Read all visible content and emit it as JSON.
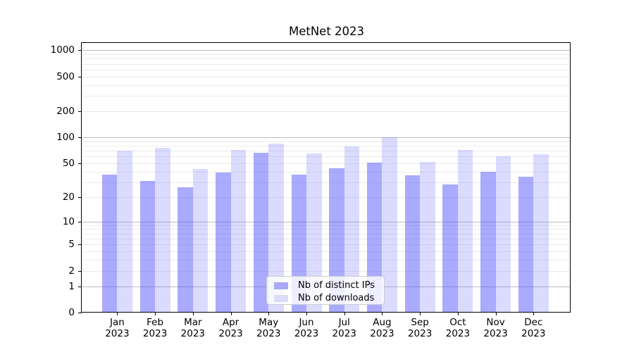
{
  "title": "MetNet 2023",
  "colors": {
    "ips_bar": "rgba(85,85,255,0.50)",
    "downloads_bar": "rgba(85,85,255,0.21)",
    "ips_swatch": "#aaaaf8",
    "downloads_swatch": "#dcdcfa",
    "major_grid": "#bdbdbd",
    "minor_grid": "#ebebeb",
    "spine": "#000000",
    "legend_border": "#cccccc",
    "text": "#000000"
  },
  "chart_data": {
    "type": "bar",
    "title": "MetNet 2023",
    "months": [
      "Jan",
      "Feb",
      "Mar",
      "Apr",
      "May",
      "Jun",
      "Jul",
      "Aug",
      "Sep",
      "Oct",
      "Nov",
      "Dec"
    ],
    "year": "2023",
    "series": [
      {
        "name": "Nb of distinct IPs",
        "values": [
          37,
          31,
          26,
          39,
          66,
          37,
          44,
          51,
          36,
          28,
          40,
          35
        ]
      },
      {
        "name": "Nb of downloads",
        "values": [
          70,
          75,
          43,
          72,
          85,
          65,
          78,
          100,
          52,
          72,
          60,
          64
        ]
      }
    ],
    "xlabel": "",
    "ylabel": "",
    "yscale": "log1p",
    "yticks": [
      0,
      1,
      2,
      5,
      10,
      20,
      50,
      100,
      200,
      500,
      1000
    ],
    "grid_major": [
      1,
      10,
      100,
      1000
    ],
    "ylim": [
      0,
      1234
    ],
    "grid": "horizontal major+minor",
    "legend_position": "lower center"
  }
}
